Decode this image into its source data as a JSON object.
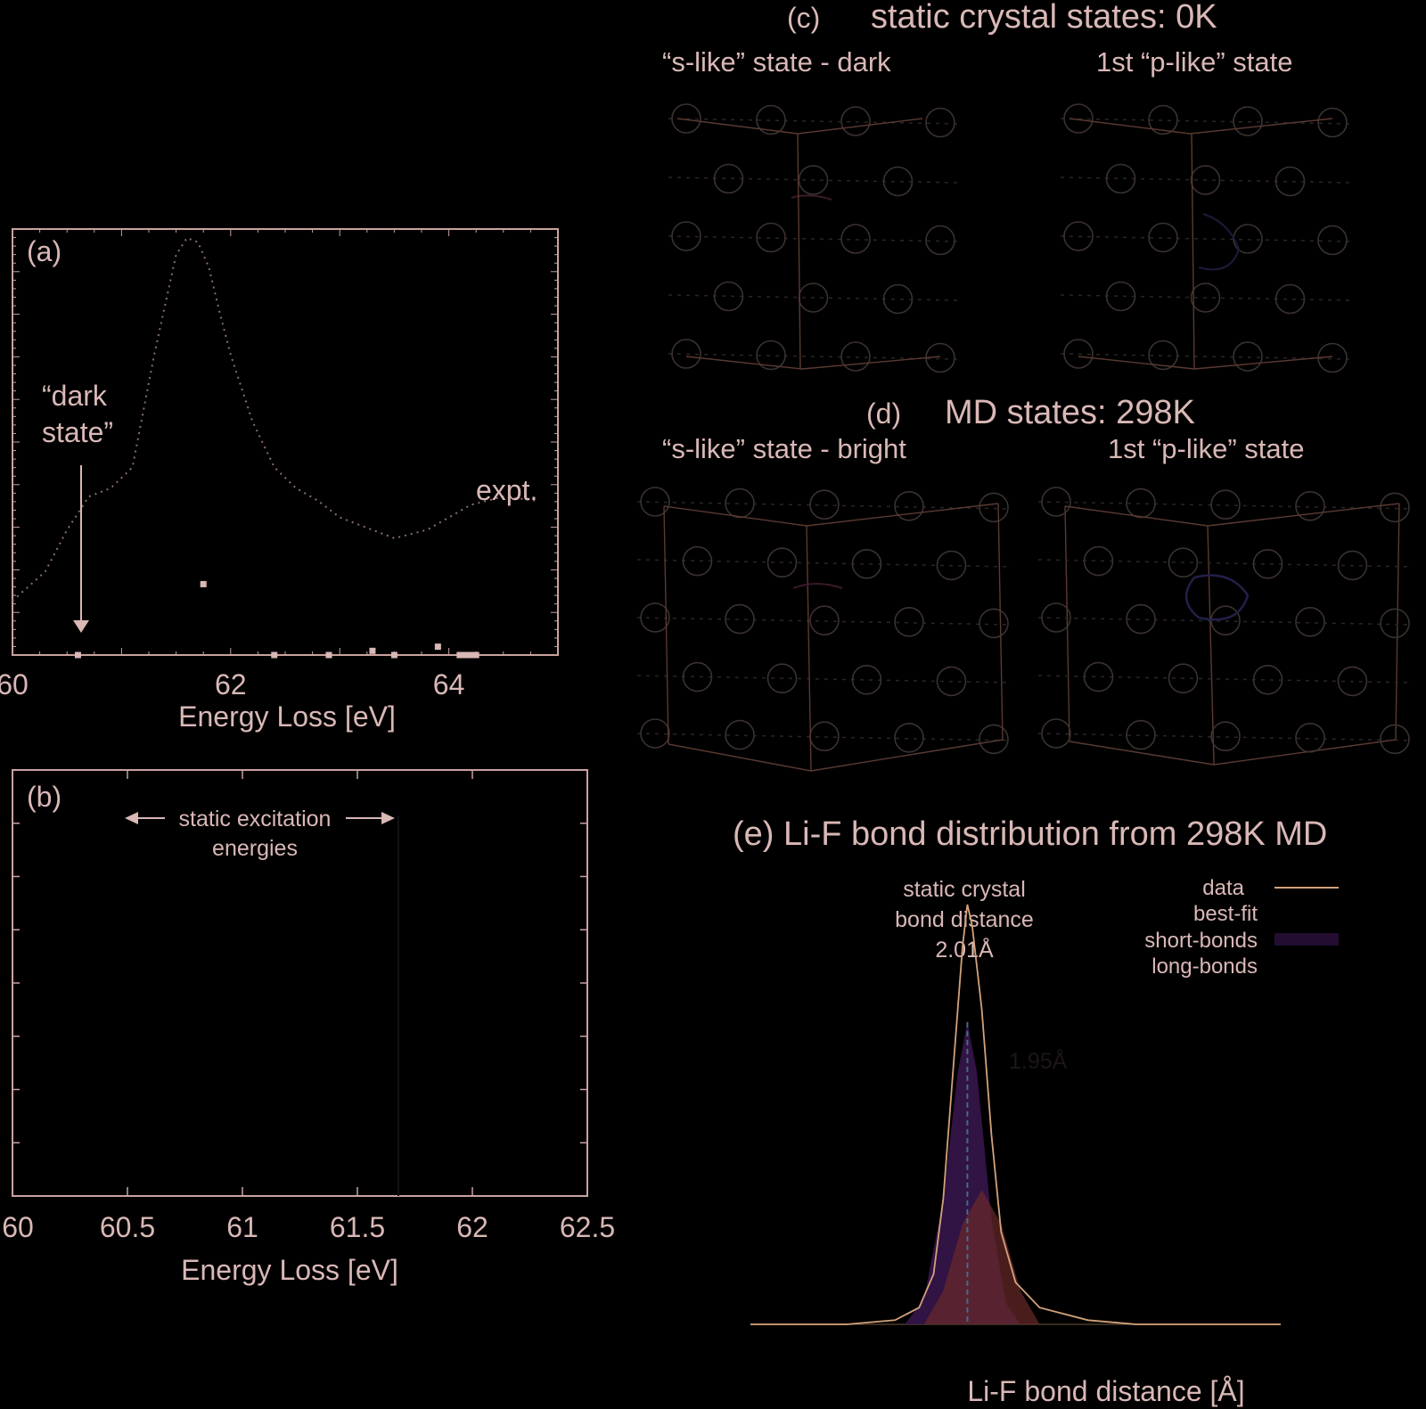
{
  "colors": {
    "frame": "#c9a3a0",
    "text": "#d9b8b6",
    "expt": "#8a6e6c",
    "short_bonds": "#3a1650",
    "long_bonds": "#6a2a2a",
    "best_fit": "#4a6a8a",
    "data": "#d3a27a",
    "atom": "#3b3230",
    "bond": "#2b2526",
    "cell": "#5a3a30"
  },
  "panels": {
    "a": {
      "label": "(a)",
      "annotation_dark_state": [
        "“dark",
        "state”"
      ],
      "annotation_expt": "expt.",
      "xlabel": "Energy Loss [eV]",
      "xticklabels": [
        "60",
        "62",
        "64"
      ]
    },
    "b": {
      "label": "(b)",
      "annotation_static": "static excitation",
      "annotation_static2": "energies",
      "xlabel": "Energy Loss [eV]",
      "xticklabels": [
        "60",
        "60.5",
        "61",
        "61.5",
        "62",
        "62.5"
      ]
    },
    "c": {
      "label": "(c)",
      "title": "static crystal states: 0K",
      "left_caption": "“s-like” state - dark",
      "right_caption": "1st “p-like” state"
    },
    "d": {
      "label": "(d)",
      "title": "MD states: 298K",
      "left_caption": "“s-like” state - bright",
      "right_caption": "1st “p-like” state"
    },
    "e": {
      "title": "(e) Li-F bond distribution from 298K MD",
      "annotation_static": [
        "static crystal",
        "bond distance",
        "2.01Å"
      ],
      "annotation_peak": "1.95Å",
      "xlabel": "Li-F bond distance [Å]",
      "legend": [
        "data",
        "best-fit",
        "short-bonds",
        "long-bonds"
      ]
    }
  },
  "chart_data": [
    {
      "panel": "a",
      "type": "line",
      "xlim": [
        60,
        65
      ],
      "grid": false,
      "series": [
        {
          "name": "expt.",
          "x": [
            60.0,
            60.3,
            60.5,
            60.7,
            60.9,
            61.1,
            61.3,
            61.5,
            61.6,
            61.7,
            61.8,
            61.9,
            62.0,
            62.2,
            62.4,
            62.6,
            62.8,
            63.0,
            63.2,
            63.5,
            63.8,
            64.0,
            64.2,
            64.5,
            64.8
          ],
          "y": [
            0.13,
            0.2,
            0.3,
            0.38,
            0.4,
            0.45,
            0.72,
            0.96,
            1.0,
            0.99,
            0.93,
            0.82,
            0.72,
            0.56,
            0.45,
            0.4,
            0.37,
            0.33,
            0.31,
            0.28,
            0.3,
            0.33,
            0.36,
            0.38,
            0.37
          ]
        },
        {
          "name": "static excitation energies",
          "type": "scatter",
          "x": [
            60.6,
            61.75,
            62.4,
            62.9,
            63.3,
            63.5,
            63.9,
            64.1,
            64.15,
            64.2,
            64.25
          ],
          "y": [
            0.0,
            0.17,
            0.0,
            0.0,
            0.01,
            0.0,
            0.02,
            0.0,
            0.0,
            0.0,
            0.0
          ]
        }
      ]
    },
    {
      "panel": "b",
      "type": "line",
      "xlim": [
        60,
        62.5
      ],
      "grid": false,
      "series": []
    },
    {
      "panel": "e",
      "type": "area",
      "xlim": [
        1.5,
        2.6
      ],
      "grid": false,
      "series": [
        {
          "name": "data",
          "x": [
            1.5,
            1.7,
            1.8,
            1.85,
            1.88,
            1.9,
            1.92,
            1.94,
            1.95,
            1.96,
            1.98,
            2.0,
            2.02,
            2.05,
            2.1,
            2.2,
            2.3,
            2.6
          ],
          "y": [
            0.0,
            0.0,
            0.01,
            0.04,
            0.12,
            0.3,
            0.6,
            0.9,
            1.0,
            0.95,
            0.75,
            0.45,
            0.22,
            0.1,
            0.04,
            0.01,
            0.0,
            0.0
          ]
        },
        {
          "name": "short-bonds",
          "x": [
            1.82,
            1.86,
            1.9,
            1.93,
            1.95,
            1.97,
            2.0,
            2.03,
            2.06
          ],
          "y": [
            0.0,
            0.06,
            0.3,
            0.6,
            0.72,
            0.6,
            0.25,
            0.05,
            0.0
          ]
        },
        {
          "name": "long-bonds",
          "x": [
            1.86,
            1.9,
            1.94,
            1.98,
            2.02,
            2.06,
            2.1
          ],
          "y": [
            0.0,
            0.08,
            0.24,
            0.32,
            0.24,
            0.08,
            0.0
          ]
        }
      ],
      "markers": [
        1.95
      ]
    }
  ]
}
